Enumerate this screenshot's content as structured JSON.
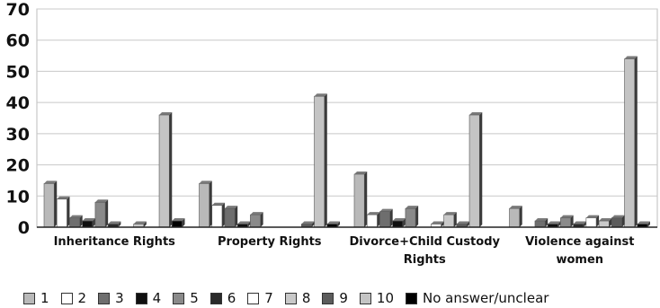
{
  "chart_data": {
    "type": "bar",
    "categories": [
      "Inheritance Rights",
      "Property Rights",
      "Divorce+Child Custody Rights",
      "Violence against women"
    ],
    "category_lines": [
      [
        "Inheritance Rights"
      ],
      [
        "Property Rights"
      ],
      [
        "Divorce+Child Custody",
        "Rights"
      ],
      [
        "Violence against",
        "women"
      ]
    ],
    "ylim": [
      0,
      70
    ],
    "yticks": [
      0,
      10,
      20,
      30,
      40,
      50,
      60,
      70
    ],
    "grid": true,
    "legend_position": "bottom",
    "series": [
      {
        "name": "1",
        "color": "#b9b9b9",
        "values": [
          14,
          14,
          17,
          6
        ]
      },
      {
        "name": "2",
        "color": "#ffffff",
        "values": [
          9,
          7,
          4,
          0
        ]
      },
      {
        "name": "3",
        "color": "#6e6e6e",
        "values": [
          3,
          6,
          5,
          2
        ]
      },
      {
        "name": "4",
        "color": "#101010",
        "values": [
          2,
          1,
          2,
          1
        ]
      },
      {
        "name": "5",
        "color": "#8a8a8a",
        "values": [
          8,
          4,
          6,
          3
        ]
      },
      {
        "name": "6",
        "color": "#2a2a2a",
        "values": [
          1,
          0,
          0,
          1
        ]
      },
      {
        "name": "7",
        "color": "#ffffff",
        "values": [
          0,
          0,
          1,
          3
        ]
      },
      {
        "name": "8",
        "color": "#c9c9c9",
        "values": [
          1,
          0,
          4,
          2
        ]
      },
      {
        "name": "9",
        "color": "#5c5c5c",
        "values": [
          0,
          1,
          1,
          3
        ]
      },
      {
        "name": "10",
        "color": "#c4c4c4",
        "values": [
          36,
          42,
          36,
          54
        ]
      },
      {
        "name": "No answer/unclear",
        "color": "#000000",
        "values": [
          2,
          1,
          0,
          1
        ]
      }
    ]
  }
}
